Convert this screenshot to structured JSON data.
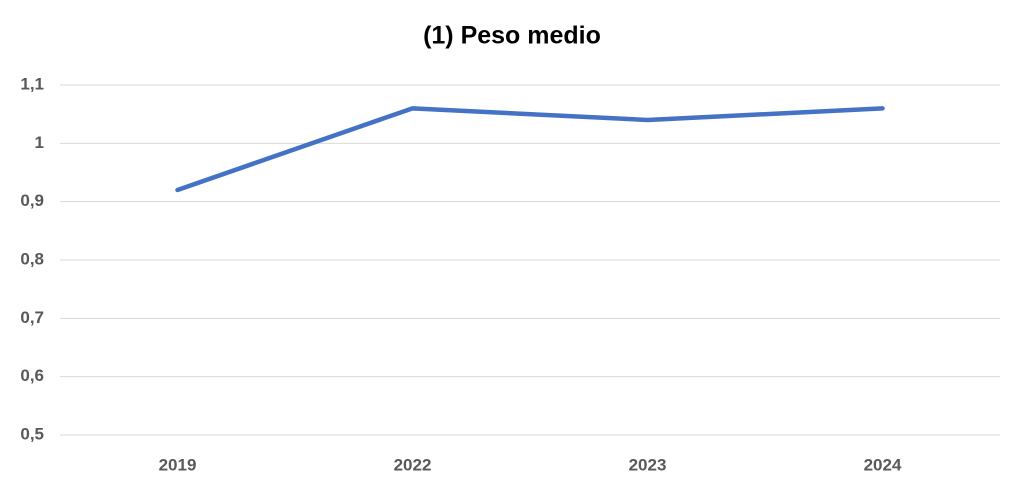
{
  "chart_data": {
    "type": "line",
    "title": "(1) Peso medio",
    "categories": [
      "2019",
      "2022",
      "2023",
      "2024"
    ],
    "series": [
      {
        "name": "Peso medio",
        "color": "#4472c4",
        "values": [
          0.92,
          1.06,
          1.04,
          1.06
        ]
      }
    ],
    "ylim": [
      0.5,
      1.1
    ],
    "yticks": [
      {
        "value": 0.5,
        "label": "0,5"
      },
      {
        "value": 0.6,
        "label": "0,6"
      },
      {
        "value": 0.7,
        "label": "0,7"
      },
      {
        "value": 0.8,
        "label": "0,8"
      },
      {
        "value": 0.9,
        "label": "0,9"
      },
      1,
      {
        "value": 1.1,
        "label": "1,1"
      }
    ],
    "grid": true,
    "legend": false
  }
}
